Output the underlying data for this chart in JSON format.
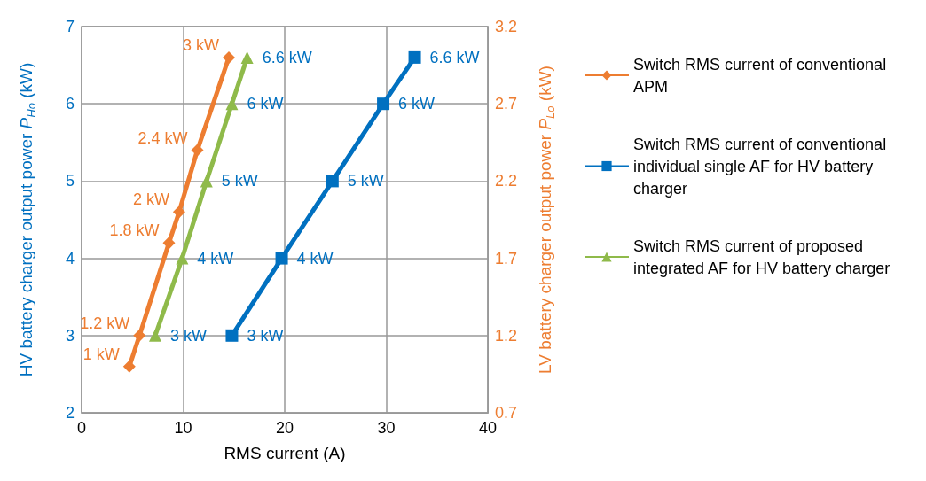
{
  "chart_data": {
    "type": "line",
    "xlabel": "RMS current (A)",
    "ylabel": "HV battery charger output power P$_{Ho}$ (kW)",
    "y2label": "LV battery charger output power P$_{Lo}$ (kW)",
    "xlim": [
      0,
      40
    ],
    "xticks": [
      0,
      10,
      20,
      30,
      40
    ],
    "ylim": [
      2,
      7
    ],
    "yticks": [
      2,
      3,
      4,
      5,
      6,
      7
    ],
    "y2lim": [
      0.7,
      3.2
    ],
    "y2ticks": [
      0.7,
      1.2,
      1.7,
      2.2,
      2.7,
      3.2
    ],
    "grid": true,
    "legend": "right",
    "series": [
      {
        "name": "Switch RMS current of conventional APM",
        "color": "#ed7d31",
        "marker": "diamond",
        "axis": "y2",
        "x": [
          4.7,
          5.7,
          8.6,
          9.6,
          11.4,
          14.5
        ],
        "values": [
          1,
          1.2,
          1.8,
          2,
          2.4,
          3
        ],
        "value_labels": [
          "1 kW",
          "1.2 kW",
          "1.8 kW",
          "2 kW",
          "2.4 kW",
          "3 kW"
        ]
      },
      {
        "name": "Switch RMS current of conventional individual single AF for HV battery charger",
        "color": "#0070c0",
        "marker": "square",
        "axis": "y",
        "x": [
          14.8,
          19.7,
          24.7,
          29.7,
          32.8
        ],
        "values": [
          3,
          4,
          5,
          6,
          6.6
        ],
        "value_labels": [
          "3 kW",
          "4 kW",
          "5 kW",
          "6 kW",
          "6.6 kW"
        ]
      },
      {
        "name": "Switch RMS current of proposed integrated AF for HV battery charger",
        "color": "#8fba4a",
        "marker": "triangle",
        "axis": "y",
        "x": [
          7.25,
          9.9,
          12.3,
          14.8,
          16.3
        ],
        "values": [
          3,
          4,
          5,
          6,
          6.6
        ],
        "value_labels": [
          "3 kW",
          "4 kW",
          "5 kW",
          "6 kW",
          "6.6 kW"
        ]
      }
    ]
  }
}
